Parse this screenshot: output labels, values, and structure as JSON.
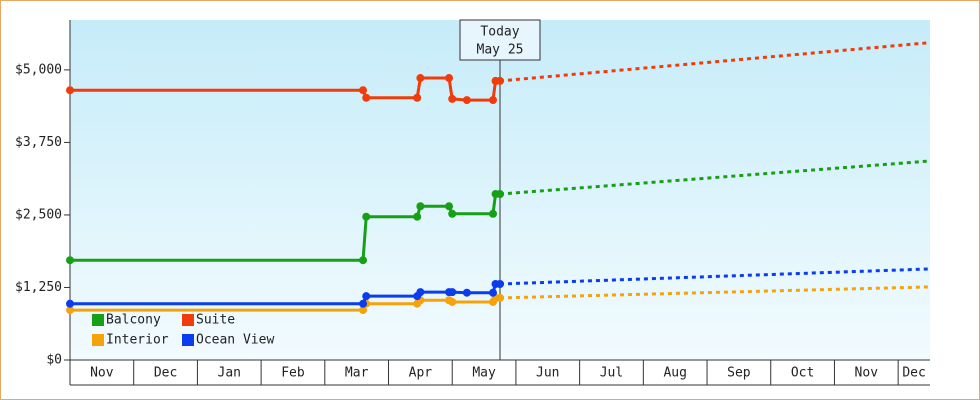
{
  "chart_data": {
    "type": "line",
    "categories": [
      "Nov",
      "Dec",
      "Jan",
      "Feb",
      "Mar",
      "Apr",
      "May",
      "Jun",
      "Jul",
      "Aug",
      "Sep",
      "Oct",
      "Nov",
      "Dec"
    ],
    "xlim": [
      0,
      13.5
    ],
    "ylim": [
      0,
      5860
    ],
    "yticks": [
      {
        "value": 0,
        "label": "$0"
      },
      {
        "value": 1250,
        "label": "$1,250"
      },
      {
        "value": 2500,
        "label": "$2,500"
      },
      {
        "value": 3750,
        "label": "$3,750"
      },
      {
        "value": 5000,
        "label": "$5,000"
      }
    ],
    "annotation": {
      "lines": [
        "Today",
        "May 25"
      ],
      "x": 6.75
    },
    "legend": "lower left",
    "series": [
      {
        "name": "Balcony",
        "color": "#16a016",
        "x": [
          0,
          4.6,
          4.65,
          5.45,
          5.5,
          5.95,
          6.0,
          6.64,
          6.68,
          6.75
        ],
        "values": [
          1720,
          1720,
          2470,
          2470,
          2650,
          2650,
          2520,
          2520,
          2860,
          2860
        ],
        "projection_x": [
          6.75,
          13.5
        ],
        "projection_values": [
          2860,
          3430
        ]
      },
      {
        "name": "Suite",
        "color": "#f03c0a",
        "x": [
          0,
          4.6,
          4.65,
          5.45,
          5.5,
          5.95,
          6.0,
          6.23,
          6.64,
          6.68,
          6.75
        ],
        "values": [
          4650,
          4650,
          4520,
          4520,
          4860,
          4860,
          4500,
          4480,
          4480,
          4810,
          4810
        ],
        "projection_x": [
          6.75,
          13.5
        ],
        "projection_values": [
          4810,
          5470
        ]
      },
      {
        "name": "Interior",
        "color": "#f5a30a",
        "x": [
          0,
          4.6,
          4.65,
          5.45,
          5.5,
          5.95,
          6.0,
          6.64,
          6.68,
          6.75
        ],
        "values": [
          860,
          860,
          970,
          970,
          1030,
          1030,
          1000,
          1000,
          1070,
          1070
        ],
        "projection_x": [
          6.75,
          13.5
        ],
        "projection_values": [
          1070,
          1260
        ]
      },
      {
        "name": "Ocean View",
        "color": "#0a3cf0",
        "x": [
          0,
          4.6,
          4.65,
          5.45,
          5.5,
          5.95,
          6.0,
          6.23,
          6.64,
          6.68,
          6.75
        ],
        "values": [
          970,
          970,
          1100,
          1100,
          1170,
          1170,
          1170,
          1160,
          1160,
          1310,
          1310
        ],
        "projection_x": [
          6.75,
          13.5
        ],
        "projection_values": [
          1310,
          1570
        ]
      }
    ]
  }
}
